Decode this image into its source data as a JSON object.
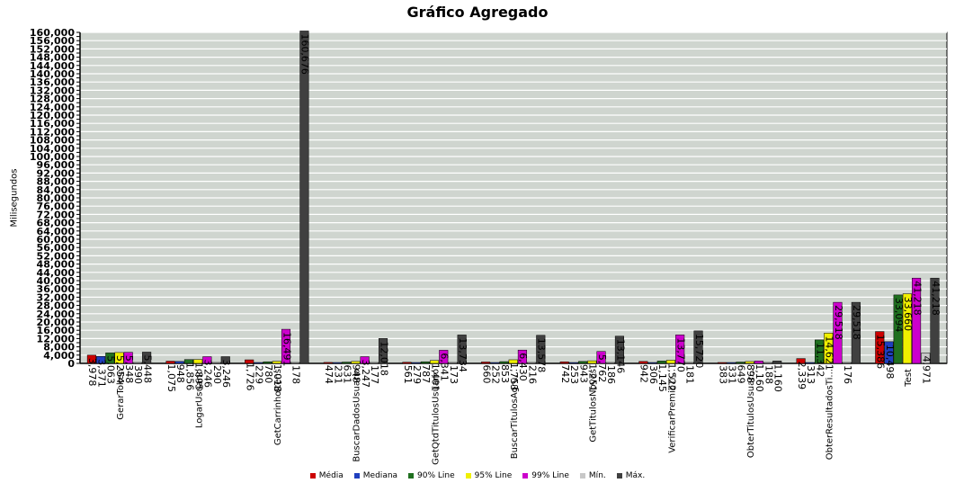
{
  "chart_data": {
    "type": "bar",
    "title": "Gráfico Agregado",
    "xlabel": "",
    "ylabel": "Milisegundos",
    "ylim": [
      0,
      160000
    ],
    "grid": true,
    "legend_position": "bottom-center",
    "categories": [
      "GerarToken",
      "LogarUsuario",
      "GetCarrinhoItens",
      "BuscarDadosUsuario",
      "GetQtdTitulosUsuario",
      "BuscarTitulosAgru...",
      "GetTitulosNovos",
      "VerificarPremioTi...",
      "ObterTitulosUsuar...",
      "ObterResultadosTi...",
      "Test"
    ],
    "series": [
      {
        "name": "Média",
        "color": "#cc0000",
        "values": [
          3978,
          1075,
          1726,
          474,
          561,
          660,
          742,
          942,
          383,
          2339,
          15386
        ],
        "labels": [
          "3,978",
          "1,075",
          "1,726",
          "474",
          "561",
          "660",
          "742",
          "942",
          "383",
          "2,339",
          "15,386"
        ]
      },
      {
        "name": "Mediana",
        "color": "#1f3fbf",
        "values": [
          3371,
          948,
          229,
          231,
          279,
          252,
          253,
          306,
          331,
          313,
          10498
        ],
        "labels": [
          "3,371",
          "948",
          "229",
          "231",
          "279",
          "252",
          "253",
          "306",
          "331",
          "313",
          "10,498"
        ]
      },
      {
        "name": "90% Line",
        "color": "#207020",
        "values": [
          5063,
          1856,
          780,
          631,
          787,
          853,
          943,
          1145,
          649,
          11342,
          33094
        ],
        "labels": [
          "5,063",
          "1,856",
          "780",
          "631",
          "787",
          "853",
          "943",
          "1,145",
          "649",
          "11,342",
          "33,094"
        ]
      },
      {
        "name": "95% Line",
        "color": "#f0f000",
        "values": [
          5254,
          1895,
          1018,
          948,
          1401,
          1753,
          1251,
          1522,
          898,
          14621,
          33660
        ],
        "labels": [
          "5,254",
          "1,895",
          "1,018",
          "948",
          "1,401",
          "1,753",
          "1,251",
          "1,522",
          "898",
          "14,621",
          "33,660"
        ]
      },
      {
        "name": "99% Line",
        "color": "#cc00cc",
        "values": [
          5348,
          3246,
          16491,
          3247,
          6341,
          6430,
          5762,
          13770,
          1160,
          29518,
          41218
        ],
        "labels": [
          "5,348",
          "3,246",
          "16,491",
          "3,247",
          "6,341",
          "6,430",
          "5,762",
          "13,770",
          "1,160",
          "29,518",
          "41,218"
        ]
      },
      {
        "name": "Mín.",
        "color": "#c8c8c8",
        "values": [
          390,
          290,
          178,
          177,
          173,
          216,
          186,
          181,
          188,
          176,
          4971
        ],
        "labels": [
          "390",
          "290",
          "178",
          "177",
          "173",
          "216",
          "186",
          "181",
          "188",
          "176",
          "4,971"
        ]
      },
      {
        "name": "Máx.",
        "color": "#404040",
        "values": [
          5448,
          3246,
          160676,
          12018,
          13734,
          13578,
          13146,
          15720,
          1160,
          29518,
          41218
        ],
        "labels": [
          "5,448",
          "3,246",
          "160,676",
          "12,018",
          "13,734",
          "13,578",
          "13,146",
          "15,720",
          "1,160",
          "29,518",
          "41,218"
        ]
      }
    ]
  }
}
